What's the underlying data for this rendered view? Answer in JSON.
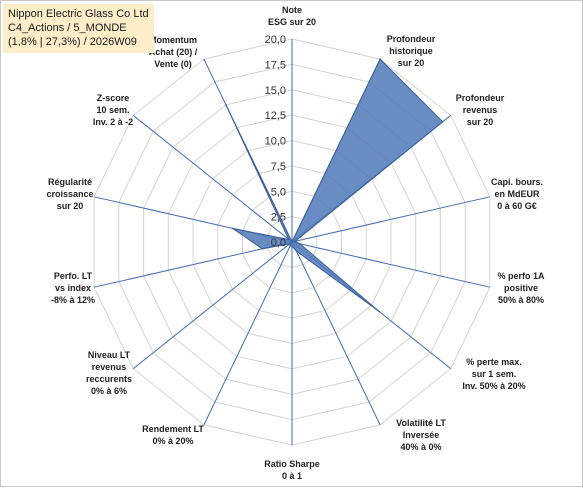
{
  "title": {
    "line1": "Nippon Electric Glass Co Ltd",
    "line2": "C4_Actions / 5_MONDE",
    "line3": "(1,8% | 27,3%) / 2026W09"
  },
  "colors": {
    "fill": "#4f79b7",
    "stroke": "#3a6098",
    "spoke": "#3f6db5",
    "ring": "#d4d4d4",
    "title_bg": "#fdeec9"
  },
  "chart_data": {
    "type": "radar",
    "rmin": 0,
    "rmax": 20,
    "ticks": [
      "0,0",
      "2,5",
      "5,0",
      "7,5",
      "10,0",
      "12,5",
      "15,0",
      "17,5",
      "20,0"
    ],
    "tick_values": [
      0,
      2.5,
      5,
      7.5,
      10,
      12.5,
      15,
      17.5,
      20
    ],
    "axes": [
      {
        "label": [
          "Note",
          "ESG sur 20"
        ],
        "value": 0
      },
      {
        "label": [
          "Profondeur",
          "historique",
          "sur 20"
        ],
        "value": 20
      },
      {
        "label": [
          "Profondeur",
          "revenus",
          "sur 20"
        ],
        "value": 19
      },
      {
        "label": [
          "Capi. bours.",
          "en MdEUR",
          "0 à 60 G€"
        ],
        "value": 0.3
      },
      {
        "label": [
          "% perfo 1A",
          "positive",
          "50% à 80%"
        ],
        "value": 0.8
      },
      {
        "label": [
          "% perte max.",
          "sur 1 sem.",
          "Inv. 50% à 20%"
        ],
        "value": 11
      },
      {
        "label": [
          "Volatilité LT",
          "Inversée",
          "40% à 0%"
        ],
        "value": 1
      },
      {
        "label": [
          "Ratio Sharpe",
          "0 à 1"
        ],
        "value": 0.4
      },
      {
        "label": [
          "Rendement LT",
          "0% à 20%"
        ],
        "value": 0.4
      },
      {
        "label": [
          "Niveau LT",
          "revenus",
          "reccurents",
          "0% à 6%"
        ],
        "value": 0.3
      },
      {
        "label": [
          "Perfo. LT",
          "vs index",
          "-8% à 12%"
        ],
        "value": 3
      },
      {
        "label": [
          "Régularité",
          "croissance",
          "sur 20"
        ],
        "value": 6
      },
      {
        "label": [
          "Z-score",
          "10 sem.",
          "Inv. 2 à -2"
        ],
        "value": 0.4
      },
      {
        "label": [
          "Momentum",
          "Achat (20) /",
          "Vente (0)"
        ],
        "value": 15
      }
    ]
  }
}
